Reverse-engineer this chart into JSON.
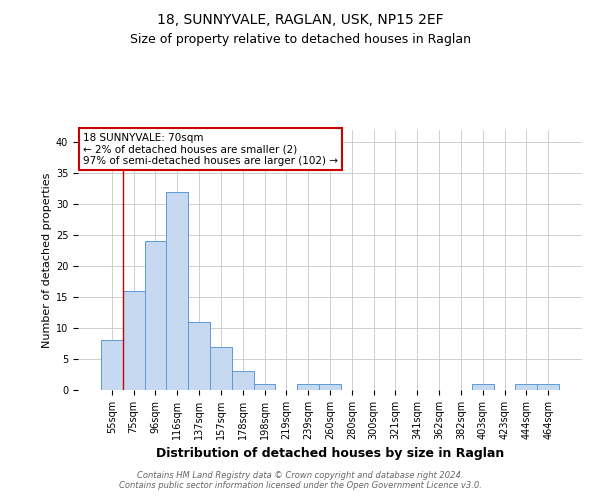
{
  "title1": "18, SUNNYVALE, RAGLAN, USK, NP15 2EF",
  "title2": "Size of property relative to detached houses in Raglan",
  "xlabel": "Distribution of detached houses by size in Raglan",
  "ylabel": "Number of detached properties",
  "categories": [
    "55sqm",
    "75sqm",
    "96sqm",
    "116sqm",
    "137sqm",
    "157sqm",
    "178sqm",
    "198sqm",
    "219sqm",
    "239sqm",
    "260sqm",
    "280sqm",
    "300sqm",
    "321sqm",
    "341sqm",
    "362sqm",
    "382sqm",
    "403sqm",
    "423sqm",
    "444sqm",
    "464sqm"
  ],
  "values": [
    8,
    16,
    24,
    32,
    11,
    7,
    3,
    1,
    0,
    1,
    1,
    0,
    0,
    0,
    0,
    0,
    0,
    1,
    0,
    1,
    1
  ],
  "bar_color": "#c6d9f0",
  "bar_edge_color": "#5b9bd5",
  "ylim": [
    0,
    42
  ],
  "yticks": [
    0,
    5,
    10,
    15,
    20,
    25,
    30,
    35,
    40
  ],
  "annotation_box_text": "18 SUNNYVALE: 70sqm\n← 2% of detached houses are smaller (2)\n97% of semi-detached houses are larger (102) →",
  "annotation_box_color": "#ffffff",
  "annotation_box_edge_color": "#cc0000",
  "footer": "Contains HM Land Registry data © Crown copyright and database right 2024.\nContains public sector information licensed under the Open Government Licence v3.0.",
  "background_color": "#ffffff",
  "grid_color": "#c8c8c8",
  "title1_fontsize": 10,
  "title2_fontsize": 9,
  "xlabel_fontsize": 9,
  "ylabel_fontsize": 8,
  "tick_fontsize": 7,
  "annot_fontsize": 7.5,
  "footer_fontsize": 6
}
